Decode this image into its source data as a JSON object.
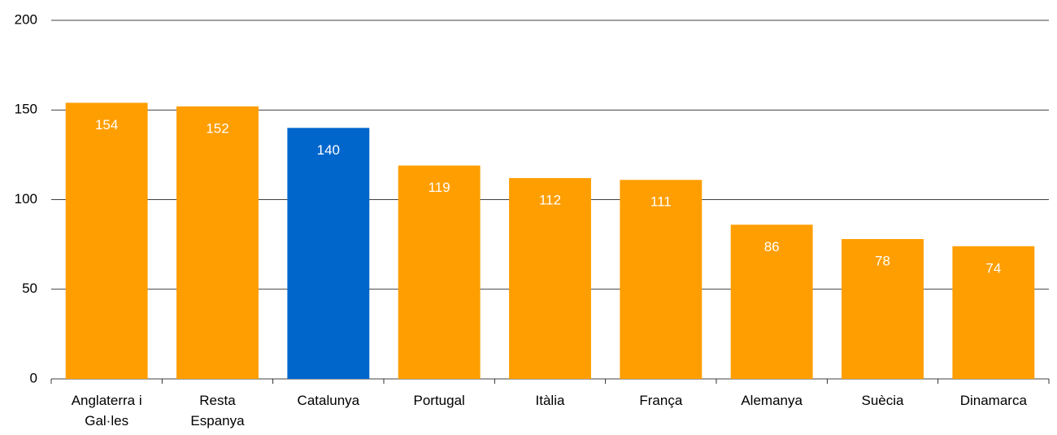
{
  "chart_data": {
    "type": "bar",
    "categories": [
      "Anglaterra i Gal·les",
      "Resta Espanya",
      "Catalunya",
      "Portugal",
      "Itàlia",
      "França",
      "Alemanya",
      "Suècia",
      "Dinamarca"
    ],
    "values": [
      154,
      152,
      140,
      119,
      112,
      111,
      86,
      78,
      74
    ],
    "colors": [
      "#ff9e00",
      "#ff9e00",
      "#0066cc",
      "#ff9e00",
      "#ff9e00",
      "#ff9e00",
      "#ff9e00",
      "#ff9e00",
      "#ff9e00"
    ],
    "ylim": [
      0,
      200
    ],
    "yticks": [
      0,
      50,
      100,
      150,
      200
    ],
    "grid": true
  }
}
